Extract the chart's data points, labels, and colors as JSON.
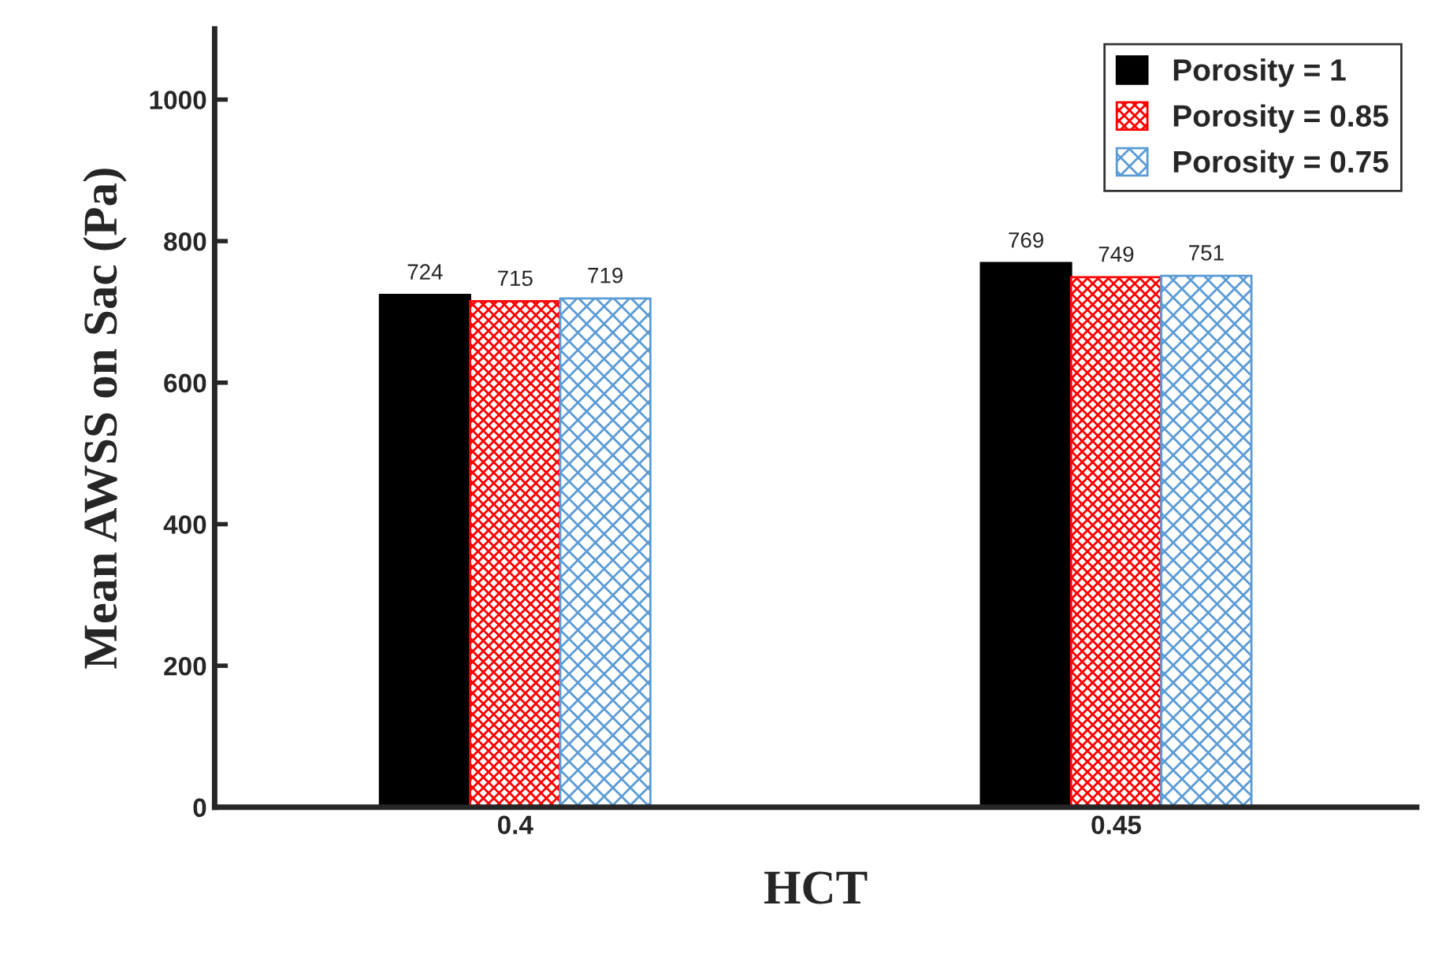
{
  "chart_data": {
    "type": "bar",
    "xlabel": "HCT",
    "ylabel": "Mean AWSS on Sac (Pa)",
    "categories": [
      "0.4",
      "0.45"
    ],
    "series": [
      {
        "name": "Porosity = 1",
        "color": "#000000",
        "values": [
          724,
          769
        ]
      },
      {
        "name": "Porosity = 0.85",
        "color": "#ff0000",
        "values": [
          715,
          749
        ]
      },
      {
        "name": "Porosity = 0.75",
        "color": "#5b9bd5",
        "values": [
          719,
          751
        ]
      }
    ],
    "ylim": [
      0,
      1100
    ],
    "yticks": [
      0,
      200,
      400,
      600,
      800,
      1000
    ],
    "data_labels": true,
    "grid": false,
    "legend": "top right"
  }
}
